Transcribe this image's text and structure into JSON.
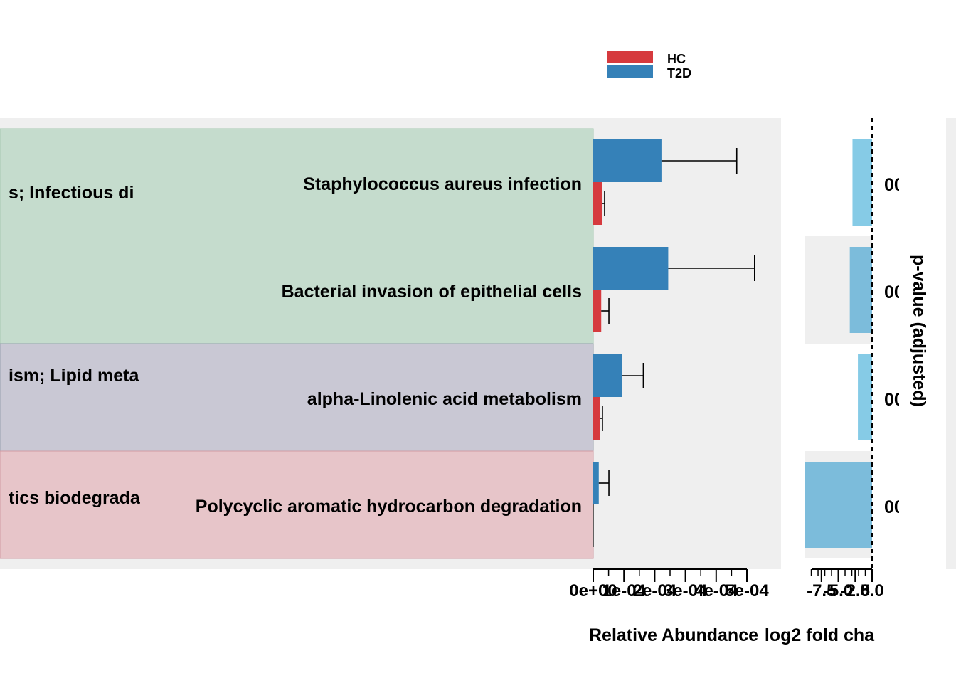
{
  "colors": {
    "HC": "#d63a3e",
    "T2D": "#3581b8",
    "logfc_light": "#86cbe6",
    "logfc_mid": "#7cbcdb",
    "panel_bg": "#efefef",
    "class_infectious_bg": "#c5dccd",
    "class_lipid_bg": "#c9c8d4",
    "class_xeno_bg": "#e7c5c9"
  },
  "legend": {
    "items": [
      "HC",
      "T2D"
    ]
  },
  "classes": [
    {
      "label": "Human Diseases; Infectious diseases",
      "visible_text": "s; Infectious di",
      "color_key": "class_infectious_bg"
    },
    {
      "label": "Metabolism; Lipid metabolism",
      "visible_text": "ism; Lipid meta",
      "color_key": "class_lipid_bg"
    },
    {
      "label": "Metabolism; Xenobiotics biodegradation",
      "visible_text": "tics biodegrada",
      "color_key": "class_xeno_bg"
    }
  ],
  "chart_data": [
    {
      "type": "bar",
      "orientation": "horizontal",
      "categories": [
        "Staphylococcus aureus infection",
        "Bacterial invasion of epithelial cells",
        "alpha-Linolenic acid metabolism",
        "Polycyclic aromatic hydrocarbon degradation"
      ],
      "series": [
        {
          "name": "T2D",
          "values": [
            0.000222,
            0.000244,
            9.3e-05,
            1.8e-05
          ],
          "errors": [
            0.000245,
            0.000281,
            7e-05,
            3.3e-05
          ]
        },
        {
          "name": "HC",
          "values": [
            3e-05,
            2.6e-05,
            2.3e-05,
            1e-06
          ],
          "errors": [
            7e-06,
            2.5e-05,
            7e-06,
            0.0
          ]
        }
      ],
      "xlabel": "Relative Abundance",
      "xlim": [
        0,
        0.0005
      ],
      "xticks": [
        0,
        0.0001,
        0.0002,
        0.0003,
        0.0004,
        0.0005
      ],
      "xtick_labels": [
        "0e+00",
        "1e-04",
        "2e-04",
        "3e-04",
        "4e-04",
        "5e-04"
      ]
    },
    {
      "type": "bar",
      "orientation": "horizontal",
      "categories": [
        "Staphylococcus aureus infection",
        "Bacterial invasion of epithelial cells",
        "alpha-Linolenic acid metabolism",
        "Polycyclic aromatic hydrocarbon degradation"
      ],
      "values": [
        -2.9,
        -3.3,
        -2.1,
        -9.9
      ],
      "colors": [
        "logfc_light",
        "logfc_mid",
        "logfc_light",
        "logfc_mid"
      ],
      "xlabel": "log2 fold cha",
      "xlim": [
        -9.9,
        0
      ],
      "xticks": [
        -7.5,
        -5.0,
        -2.5,
        0.0
      ],
      "xtick_labels": [
        "-7.5",
        "-5.0",
        "-2.5",
        "0.0"
      ],
      "reference_line": 0
    }
  ],
  "pvalue": {
    "title": "p-value (adjusted)",
    "labels": [
      "00",
      "00",
      "00",
      "00"
    ]
  }
}
